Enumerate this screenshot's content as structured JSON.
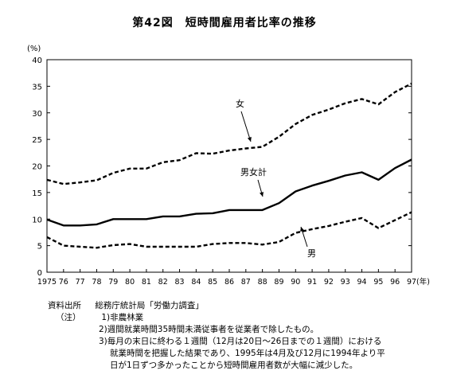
{
  "chart_data": {
    "type": "line",
    "title": "第42図　短時間雇用者比率の推移",
    "y_unit": "(%)",
    "x_unit": "(年)",
    "ylim": [
      0,
      40
    ],
    "y_ticks": [
      0,
      5,
      10,
      15,
      20,
      25,
      30,
      35,
      40
    ],
    "x_tick_labels": [
      "1975",
      "76",
      "77",
      "78",
      "79",
      "80",
      "81",
      "82",
      "83",
      "84",
      "85",
      "86",
      "87",
      "88",
      "89",
      "90",
      "91",
      "92",
      "93",
      "94",
      "95",
      "96",
      "97"
    ],
    "x": [
      1975,
      1976,
      1977,
      1978,
      1979,
      1980,
      1981,
      1982,
      1983,
      1984,
      1985,
      1986,
      1987,
      1988,
      1989,
      1990,
      1991,
      1992,
      1993,
      1994,
      1995,
      1996,
      1997
    ],
    "grid": false,
    "series": [
      {
        "name": "女",
        "style": "dashed",
        "values": [
          17.4,
          16.6,
          16.9,
          17.3,
          18.7,
          19.5,
          19.5,
          20.7,
          21.1,
          22.4,
          22.3,
          22.9,
          23.3,
          23.6,
          25.5,
          27.9,
          29.6,
          30.6,
          31.8,
          32.6,
          31.6,
          33.9,
          35.5
        ]
      },
      {
        "name": "男女計",
        "style": "solid",
        "values": [
          9.9,
          8.8,
          8.8,
          9.0,
          10.0,
          10.0,
          10.0,
          10.5,
          10.5,
          11.0,
          11.1,
          11.7,
          11.7,
          11.7,
          13.0,
          15.2,
          16.3,
          17.2,
          18.2,
          18.8,
          17.4,
          19.6,
          21.2
        ]
      },
      {
        "name": "男",
        "style": "dashed",
        "values": [
          6.6,
          5.0,
          4.8,
          4.6,
          5.1,
          5.3,
          4.8,
          4.8,
          4.8,
          4.8,
          5.3,
          5.5,
          5.5,
          5.2,
          5.7,
          7.4,
          8.1,
          8.7,
          9.5,
          10.2,
          8.3,
          9.8,
          11.3
        ]
      }
    ]
  },
  "notes": {
    "source_label": "資料出所",
    "source_text": "総務庁統計局「労働力調査」",
    "note_label": "（注）",
    "note1": "1)非農林業",
    "note2": "2)週間就業時間35時間未満従事者を従業者で除したもの。",
    "note3_line1": "3)毎月の末日に終わる１週間（12月は20日～26日までの１週間）における",
    "note3_line2": "就業時間を把握した結果であり、1995年は4月及び12月に1994年より平",
    "note3_line3": "日が1日ずつ多かったことから短時間雇用者数が大幅に減少した。"
  }
}
